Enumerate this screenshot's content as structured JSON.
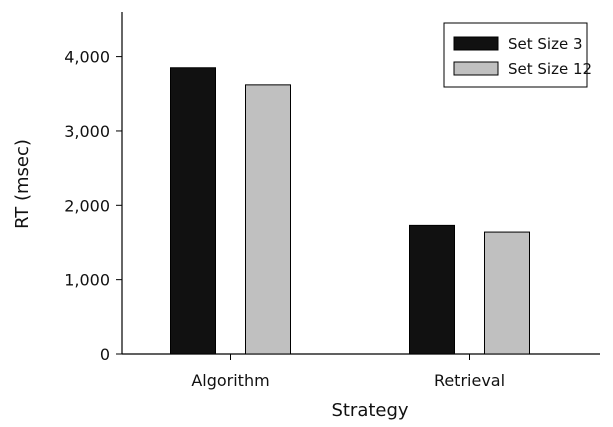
{
  "chart_data": {
    "type": "bar",
    "title": "",
    "xlabel": "Strategy",
    "ylabel": "RT (msec)",
    "categories": [
      "Algorithm",
      "Retrieval"
    ],
    "series": [
      {
        "name": "Set Size 3",
        "values": [
          3850,
          1730
        ],
        "color": "#111111"
      },
      {
        "name": "Set Size 12",
        "values": [
          3620,
          1640
        ],
        "color": "#c0c0c0"
      }
    ],
    "ylim": [
      0,
      4600
    ],
    "yticks": [
      0,
      1000,
      2000,
      3000,
      4000
    ],
    "ytick_labels": [
      "0",
      "1,000",
      "2,000",
      "3,000",
      "4,000"
    ],
    "grid": false,
    "legend_position": "top-right",
    "bar_edge_color": "#000000"
  }
}
